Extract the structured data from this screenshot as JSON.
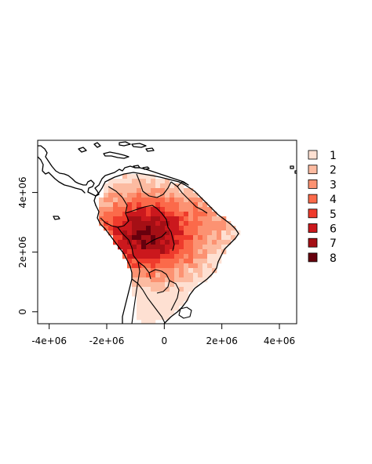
{
  "map": {
    "projection": "equal-area (metres)",
    "x_axis": {
      "range": [
        -4400000,
        4600000
      ],
      "ticks": [
        -4000000,
        -2000000,
        0,
        2000000,
        4000000
      ],
      "tick_labels": [
        "-4e+06",
        "-2e+06",
        "0",
        "2e+06",
        "4e+06"
      ]
    },
    "y_axis": {
      "range": [
        -400000,
        5750000
      ],
      "ticks": [
        0,
        2000000,
        4000000
      ],
      "tick_labels": [
        "0",
        "2e+06",
        "4e+06"
      ]
    },
    "grid": false
  },
  "legend": {
    "placement": "right",
    "classes": [
      {
        "label": "1",
        "color": "#fee0d2"
      },
      {
        "label": "2",
        "color": "#fcbba1"
      },
      {
        "label": "3",
        "color": "#fc9272"
      },
      {
        "label": "4",
        "color": "#fb6a4a"
      },
      {
        "label": "5",
        "color": "#ef3b2c"
      },
      {
        "label": "6",
        "color": "#cb181d"
      },
      {
        "label": "7",
        "color": "#a50f15"
      },
      {
        "label": "8",
        "color": "#67000d"
      }
    ]
  }
}
